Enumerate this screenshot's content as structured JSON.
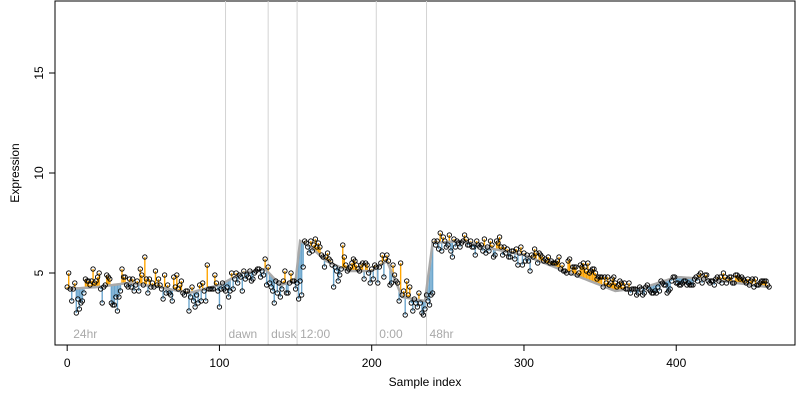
{
  "chart_data": {
    "type": "scatter",
    "title": "",
    "xlabel": "Sample index",
    "ylabel": "Expression",
    "xlim": [
      -8,
      478
    ],
    "ylim": [
      1.4,
      18.6
    ],
    "x_ticks": [
      0,
      100,
      200,
      300,
      400
    ],
    "y_ticks": [
      5,
      10,
      15
    ],
    "grid": false,
    "legend": "none",
    "colors": {
      "up_segment": "#FFA500",
      "down_segment": "#6CA6CD",
      "smooth_line": "#A9A9A9",
      "point_stroke": "#000000",
      "marker_line": "#D3D3D3",
      "marker_text": "#A9A9A9",
      "frame": "#000000"
    },
    "marker_lines": [
      {
        "x": 104,
        "label": "dawn"
      },
      {
        "x": 132,
        "label": "dusk"
      },
      {
        "x": 151,
        "label": "12:00"
      },
      {
        "x": 203,
        "label": "0:00"
      },
      {
        "x": 236,
        "label": "48hr"
      }
    ],
    "corner_label": {
      "x": 2,
      "label": "24hr"
    },
    "x_start": 0,
    "x_step": 1,
    "baseline": [
      [
        0,
        4.2
      ],
      [
        20,
        4.3
      ],
      [
        40,
        4.5
      ],
      [
        60,
        4.3
      ],
      [
        80,
        4.0
      ],
      [
        100,
        4.4
      ],
      [
        115,
        5.0
      ],
      [
        130,
        5.2
      ],
      [
        140,
        4.4
      ],
      [
        150,
        4.6
      ],
      [
        153,
        6.6
      ],
      [
        160,
        6.3
      ],
      [
        170,
        5.6
      ],
      [
        185,
        5.1
      ],
      [
        200,
        5.1
      ],
      [
        210,
        5.6
      ],
      [
        220,
        3.8
      ],
      [
        235,
        3.6
      ],
      [
        240,
        6.5
      ],
      [
        260,
        6.6
      ],
      [
        280,
        6.2
      ],
      [
        300,
        5.9
      ],
      [
        320,
        5.3
      ],
      [
        340,
        4.7
      ],
      [
        360,
        4.1
      ],
      [
        380,
        4.3
      ],
      [
        400,
        4.8
      ],
      [
        420,
        4.7
      ],
      [
        440,
        4.5
      ],
      [
        460,
        4.3
      ]
    ],
    "values": [
      4.3,
      5.0,
      4.2,
      3.6,
      4.2,
      4.5,
      3.0,
      3.7,
      3.2,
      3.5,
      3.6,
      4.0,
      4.7,
      4.6,
      4.6,
      4.4,
      4.6,
      5.2,
      4.5,
      4.6,
      4.8,
      5.0,
      4.2,
      3.5,
      4.3,
      4.4,
      4.9,
      4.8,
      4.7,
      3.5,
      3.4,
      3.4,
      3.8,
      3.1,
      3.8,
      4.1,
      5.2,
      4.8,
      4.8,
      4.4,
      4.3,
      4.7,
      4.3,
      4.7,
      4.1,
      4.4,
      4.6,
      4.1,
      5.2,
      4.9,
      4.4,
      5.8,
      4.7,
      4.0,
      4.7,
      4.3,
      4.5,
      4.3,
      5.1,
      4.4,
      4.7,
      4.4,
      4.2,
      3.7,
      4.9,
      4.0,
      4.4,
      4.0,
      3.9,
      3.6,
      4.8,
      4.3,
      4.9,
      4.2,
      4.4,
      4.6,
      4.0,
      3.9,
      4.1,
      4.1,
      3.1,
      3.8,
      4.3,
      3.6,
      3.3,
      3.9,
      3.5,
      4.4,
      3.6,
      4.5,
      4.1,
      3.6,
      5.4,
      4.2,
      4.2,
      4.2,
      4.2,
      4.9,
      4.5,
      4.1,
      3.3,
      4.2,
      4.5,
      4.2,
      4.1,
      4.3,
      3.8,
      4.1,
      5.0,
      4.2,
      4.7,
      5.0,
      4.5,
      4.9,
      4.8,
      4.1,
      5.1,
      4.7,
      4.9,
      4.8,
      5.1,
      4.6,
      4.7,
      5.0,
      5.1,
      5.2,
      5.2,
      4.8,
      5.1,
      4.9,
      5.7,
      4.4,
      5.3,
      4.5,
      4.3,
      4.1,
      3.5,
      4.6,
      4.0,
      4.5,
      3.8,
      4.2,
      4.6,
      5.1,
      4.0,
      4.0,
      4.5,
      5.0,
      4.6,
      4.6,
      4.2,
      4.5,
      3.7,
      4.6,
      3.9,
      5.3,
      6.6,
      6.5,
      6.3,
      6.0,
      6.6,
      6.1,
      6.4,
      6.7,
      6.3,
      6.5,
      6.3,
      5.9,
      5.8,
      5.3,
      5.8,
      6.0,
      5.7,
      5.6,
      5.4,
      4.3,
      5.3,
      5.1,
      4.6,
      4.9,
      5.2,
      6.4,
      5.8,
      5.4,
      5.1,
      5.2,
      5.3,
      5.5,
      5.7,
      5.6,
      5.4,
      5.2,
      5.1,
      5.4,
      5.5,
      4.7,
      5.5,
      5.4,
      5.0,
      4.5,
      5.2,
      4.7,
      5.4,
      5.3,
      4.5,
      5.3,
      5.5,
      5.9,
      4.8,
      5.7,
      5.9,
      5.6,
      4.4,
      4.5,
      5.4,
      4.9,
      4.6,
      4.5,
      3.6,
      5.5,
      3.9,
      4.1,
      2.9,
      4.6,
      3.9,
      4.3,
      3.5,
      3.1,
      3.7,
      3.5,
      3.3,
      4.0,
      3.5,
      3.0,
      2.9,
      3.2,
      3.9,
      3.6,
      3.4,
      3.9,
      4.0,
      6.6,
      6.4,
      6.6,
      6.2,
      7.0,
      6.1,
      6.8,
      6.6,
      6.3,
      6.4,
      6.9,
      6.1,
      5.8,
      6.7,
      6.3,
      6.6,
      6.5,
      6.3,
      6.5,
      6.6,
      6.9,
      6.7,
      6.4,
      6.4,
      6.6,
      6.3,
      6.3,
      5.9,
      6.6,
      6.4,
      6.3,
      6.4,
      6.1,
      6.7,
      6.0,
      6.3,
      6.1,
      6.6,
      6.4,
      5.8,
      5.9,
      6.6,
      6.5,
      6.8,
      6.3,
      5.9,
      6.3,
      6.0,
      6.2,
      5.8,
      5.8,
      6.1,
      6.1,
      5.7,
      6.2,
      5.4,
      6.0,
      6.3,
      5.4,
      6.0,
      5.6,
      5.9,
      5.6,
      5.1,
      5.9,
      5.8,
      6.2,
      6.0,
      5.5,
      6.0,
      5.9,
      5.8,
      5.6,
      5.7,
      5.6,
      5.8,
      5.5,
      5.6,
      5.5,
      5.5,
      5.5,
      5.6,
      5.8,
      5.2,
      5.4,
      5.1,
      5.1,
      5.0,
      5.6,
      5.7,
      5.0,
      5.3,
      5.3,
      5.3,
      4.9,
      5.0,
      5.4,
      5.3,
      5.5,
      5.3,
      5.1,
      5.5,
      5.0,
      5.1,
      5.2,
      5.2,
      5.0,
      4.7,
      4.8,
      4.8,
      4.8,
      4.3,
      4.8,
      4.5,
      4.8,
      4.4,
      4.5,
      4.7,
      4.8,
      4.5,
      4.3,
      4.4,
      4.6,
      4.5,
      4.3,
      4.5,
      4.2,
      4.2,
      4.5,
      4.0,
      4.2,
      4.2,
      4.2,
      3.9,
      4.0,
      4.3,
      4.2,
      3.9,
      4.0,
      4.3,
      4.4,
      4.2,
      4.1,
      4.0,
      4.0,
      4.1,
      4.0,
      4.3,
      4.1,
      4.6,
      4.5,
      4.4,
      4.4,
      4.0,
      4.1,
      4.2,
      4.6,
      4.8,
      4.8,
      4.5,
      4.5,
      4.4,
      4.4,
      4.5,
      4.6,
      4.6,
      4.4,
      4.5,
      4.4,
      4.4,
      4.4,
      4.7,
      4.8,
      4.6,
      4.9,
      5.0,
      4.5,
      4.7,
      4.9,
      4.9,
      4.6,
      4.5,
      4.6,
      4.6,
      4.4,
      4.7,
      4.8,
      4.6,
      4.8,
      4.5,
      5.0,
      4.8,
      4.5,
      4.7,
      4.8,
      4.8,
      4.5,
      4.5,
      4.9,
      4.9,
      4.8,
      4.7,
      4.8,
      4.7,
      4.6,
      4.5,
      4.7,
      4.4,
      4.6,
      4.7,
      4.3,
      4.7,
      4.4,
      4.4,
      4.5,
      4.6,
      4.6,
      4.6,
      4.6,
      4.4,
      4.3
    ]
  }
}
